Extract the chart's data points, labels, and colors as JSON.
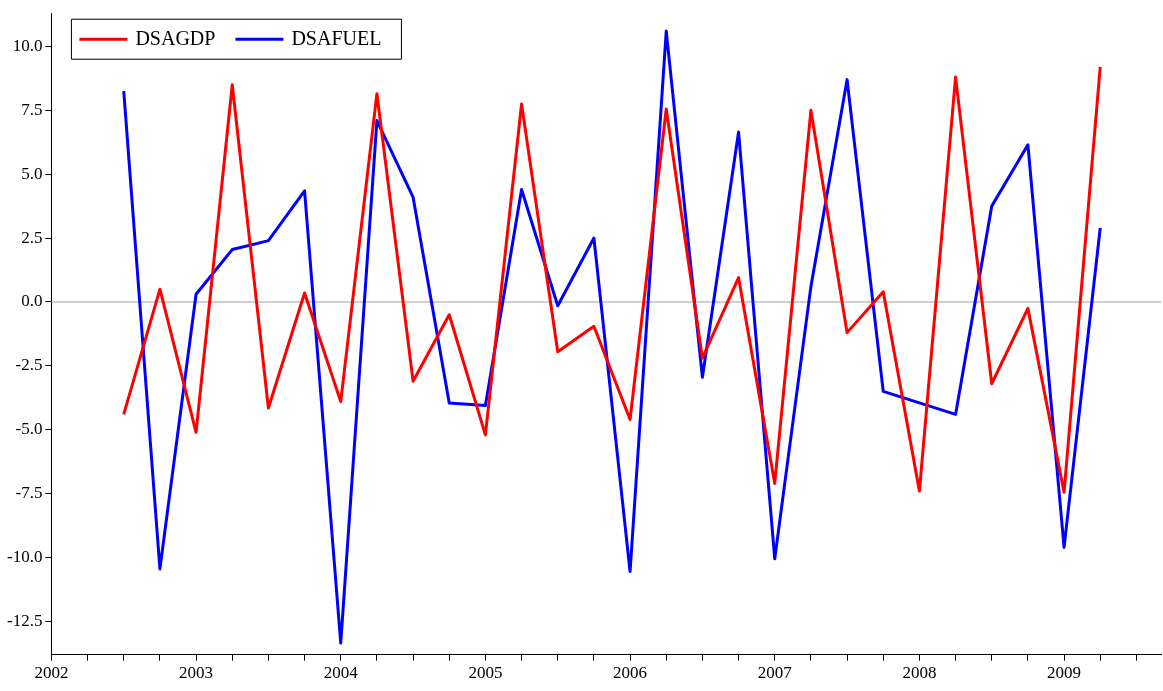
{
  "chart_data": {
    "type": "line",
    "x": [
      2002.5,
      2002.75,
      2003,
      2003.25,
      2003.5,
      2003.75,
      2004,
      2004.25,
      2004.5,
      2004.75,
      2005,
      2005.25,
      2005.5,
      2005.75,
      2006,
      2006.25,
      2006.5,
      2006.75,
      2007,
      2007.25,
      2007.5,
      2007.75,
      2008,
      2008.25,
      2008.5,
      2008.75,
      2009,
      2009.25
    ],
    "series": [
      {
        "name": "DSAGDP",
        "color": "#ff0000",
        "values": [
          -4.4,
          0.5,
          -5.1,
          8.5,
          -4.15,
          0.35,
          -3.9,
          8.15,
          -3.1,
          -0.5,
          -5.2,
          7.75,
          -1.95,
          -0.95,
          -4.6,
          7.55,
          -2.2,
          0.95,
          -7.1,
          7.5,
          -1.2,
          0.4,
          -7.4,
          8.8,
          -3.2,
          -0.25,
          -7.45,
          9.2
        ]
      },
      {
        "name": "DSAFUEL",
        "color": "#0000ff",
        "values": [
          8.25,
          -10.45,
          0.3,
          2.05,
          2.4,
          4.35,
          -13.35,
          7.1,
          4.1,
          -3.95,
          -4.05,
          4.4,
          -0.15,
          2.5,
          -10.55,
          10.6,
          -2.95,
          6.65,
          -10.05,
          0.6,
          8.7,
          -3.5,
          -3.95,
          -4.4,
          3.75,
          6.15,
          -9.6,
          2.9
        ]
      }
    ],
    "xlim": [
      2002,
      2009.67
    ],
    "xticks": [
      2002,
      {
        "value": 2002.25,
        "label": null
      },
      {
        "value": 2002.5,
        "label": null
      },
      {
        "value": 2002.75,
        "label": null
      },
      2003,
      {
        "value": 2003.25,
        "label": null
      },
      {
        "value": 2003.5,
        "label": null
      },
      {
        "value": 2003.75,
        "label": null
      },
      2004,
      {
        "value": 2004.25,
        "label": null
      },
      {
        "value": 2004.5,
        "label": null
      },
      {
        "value": 2004.75,
        "label": null
      },
      2005,
      {
        "value": 2005.25,
        "label": null
      },
      {
        "value": 2005.5,
        "label": null
      },
      {
        "value": 2005.75,
        "label": null
      },
      2006,
      {
        "value": 2006.25,
        "label": null
      },
      {
        "value": 2006.5,
        "label": null
      },
      {
        "value": 2006.75,
        "label": null
      },
      2007,
      {
        "value": 2007.25,
        "label": null
      },
      {
        "value": 2007.5,
        "label": null
      },
      {
        "value": 2007.75,
        "label": null
      },
      2008,
      {
        "value": 2008.25,
        "label": null
      },
      {
        "value": 2008.5,
        "label": null
      },
      {
        "value": 2008.75,
        "label": null
      },
      2009,
      {
        "value": 2009.25,
        "label": null
      },
      {
        "value": 2009.5,
        "label": null
      }
    ],
    "ylim": [
      -13.8,
      11.3
    ],
    "yticks": [
      {
        "value": -12.5,
        "label": "-12.5"
      },
      {
        "value": -10,
        "label": "-10.0"
      },
      {
        "value": -7.5,
        "label": "-7.5"
      },
      {
        "value": -5,
        "label": "-5.0"
      },
      {
        "value": -2.5,
        "label": "-2.5"
      },
      {
        "value": 0,
        "label": "0.0"
      },
      {
        "value": 2.5,
        "label": "2.5"
      },
      {
        "value": 5,
        "label": "5.0"
      },
      {
        "value": 7.5,
        "label": "7.5"
      },
      {
        "value": 10,
        "label": "10.0"
      }
    ],
    "ref_lines": [
      {
        "axis": "y",
        "value": 0,
        "label": null,
        "color": "#a0a0a0"
      }
    ],
    "legend": "top left",
    "grid": false,
    "marker": "none",
    "line_style": "solid"
  }
}
